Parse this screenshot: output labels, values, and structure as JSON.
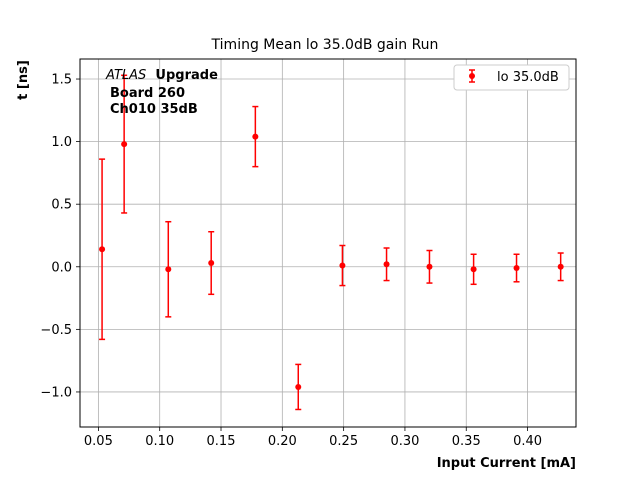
{
  "chart_data": {
    "type": "scatter",
    "title": "Timing Mean lo 35.0dB gain Run",
    "xlabel": "Input Current [mA]",
    "ylabel": "t [ns]",
    "xlim": [
      0.035,
      0.4395
    ],
    "ylim": [
      -1.28,
      1.66
    ],
    "xticks": [
      0.05,
      0.1,
      0.15,
      0.2,
      0.25,
      0.3,
      0.35,
      0.4
    ],
    "xtick_labels": [
      "0.05",
      "0.10",
      "0.15",
      "0.20",
      "0.25",
      "0.30",
      "0.35",
      "0.40"
    ],
    "yticks": [
      -1.0,
      -0.5,
      0.0,
      0.5,
      1.0,
      1.5
    ],
    "ytick_labels": [
      "−1.0",
      "−0.5",
      "0.0",
      "0.5",
      "1.0",
      "1.5"
    ],
    "grid": true,
    "legend_position": "top-right",
    "annotation": {
      "atlas": "ATLAS",
      "upgrade": "Upgrade",
      "line2": "Board 260",
      "line3": "Ch010 35dB"
    },
    "series": [
      {
        "name": "lo 35.0dB",
        "color": "#ff0000",
        "x": [
          0.053,
          0.071,
          0.107,
          0.142,
          0.178,
          0.213,
          0.249,
          0.285,
          0.32,
          0.356,
          0.391,
          0.427
        ],
        "y": [
          0.14,
          0.98,
          -0.02,
          0.03,
          1.04,
          -0.96,
          0.01,
          0.02,
          0.0,
          -0.02,
          -0.01,
          0.0
        ],
        "yerr": [
          0.72,
          0.55,
          0.38,
          0.25,
          0.24,
          0.18,
          0.16,
          0.13,
          0.13,
          0.12,
          0.11,
          0.11
        ]
      }
    ]
  }
}
